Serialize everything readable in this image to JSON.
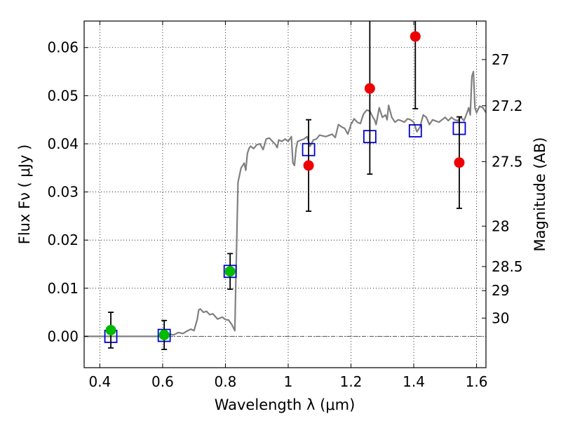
{
  "chart_data": {
    "type": "scatter",
    "title": "",
    "xlabel": "Wavelength  λ (μm)",
    "ylabel": "Flux  Fν  ( μJy )",
    "y2label": "Magnitude (AB)",
    "xlim": [
      0.35,
      1.63
    ],
    "ylim": [
      -0.0065,
      0.0655
    ],
    "x_ticks": [
      0.4,
      0.6,
      0.8,
      1.0,
      1.2,
      1.4,
      1.6
    ],
    "x_tick_labels": [
      "0.4",
      "0.6",
      "0.8",
      "1",
      "1.2",
      "1.4",
      "1.6"
    ],
    "y_ticks": [
      0.0,
      0.01,
      0.02,
      0.03,
      0.04,
      0.05,
      0.06
    ],
    "y_tick_labels": [
      "0.00",
      "0.01",
      "0.02",
      "0.03",
      "0.04",
      "0.05",
      "0.06"
    ],
    "y2_ticks": [
      {
        "label": "27",
        "flux": 0.0575
      },
      {
        "label": "27.2",
        "flux": 0.0479
      },
      {
        "label": "27.5",
        "flux": 0.0363
      },
      {
        "label": "28",
        "flux": 0.0229
      },
      {
        "label": "28.5",
        "flux": 0.0145
      },
      {
        "label": "29",
        "flux": 0.0095
      },
      {
        "label": "30",
        "flux": 0.0038
      }
    ],
    "grid": true,
    "zero_line": true,
    "series": [
      {
        "kind": "line",
        "color": "#808080",
        "points": [
          [
            0.35,
            0.0
          ],
          [
            0.6,
            0.0
          ],
          [
            0.62,
            0.0005
          ],
          [
            0.635,
            0.0003
          ],
          [
            0.65,
            0.0008
          ],
          [
            0.665,
            0.0006
          ],
          [
            0.675,
            0.001
          ],
          [
            0.69,
            0.0015
          ],
          [
            0.7,
            0.0012
          ],
          [
            0.71,
            0.0035
          ],
          [
            0.715,
            0.0055
          ],
          [
            0.72,
            0.0057
          ],
          [
            0.73,
            0.005
          ],
          [
            0.74,
            0.0052
          ],
          [
            0.75,
            0.0045
          ],
          [
            0.76,
            0.0047
          ],
          [
            0.775,
            0.0036
          ],
          [
            0.79,
            0.004
          ],
          [
            0.8,
            0.0035
          ],
          [
            0.81,
            0.0034
          ],
          [
            0.82,
            0.0025
          ],
          [
            0.83,
            0.0012
          ],
          [
            0.832,
            0.008
          ],
          [
            0.84,
            0.032
          ],
          [
            0.85,
            0.035
          ],
          [
            0.86,
            0.036
          ],
          [
            0.865,
            0.0345
          ],
          [
            0.87,
            0.038
          ],
          [
            0.875,
            0.039
          ],
          [
            0.88,
            0.0395
          ],
          [
            0.89,
            0.039
          ],
          [
            0.9,
            0.0398
          ],
          [
            0.91,
            0.04
          ],
          [
            0.92,
            0.0388
          ],
          [
            0.93,
            0.041
          ],
          [
            0.94,
            0.0412
          ],
          [
            0.95,
            0.0405
          ],
          [
            0.96,
            0.0398
          ],
          [
            0.965,
            0.0392
          ],
          [
            0.97,
            0.0408
          ],
          [
            0.98,
            0.0405
          ],
          [
            0.99,
            0.041
          ],
          [
            1.0,
            0.0405
          ],
          [
            1.01,
            0.0415
          ],
          [
            1.015,
            0.036
          ],
          [
            1.02,
            0.0355
          ],
          [
            1.025,
            0.039
          ],
          [
            1.03,
            0.0405
          ],
          [
            1.05,
            0.041
          ],
          [
            1.06,
            0.0415
          ],
          [
            1.07,
            0.0395
          ],
          [
            1.08,
            0.0408
          ],
          [
            1.09,
            0.041
          ],
          [
            1.1,
            0.0418
          ],
          [
            1.12,
            0.0415
          ],
          [
            1.14,
            0.042
          ],
          [
            1.15,
            0.0413
          ],
          [
            1.16,
            0.044
          ],
          [
            1.17,
            0.0435
          ],
          [
            1.18,
            0.0432
          ],
          [
            1.19,
            0.042
          ],
          [
            1.2,
            0.044
          ],
          [
            1.21,
            0.0452
          ],
          [
            1.22,
            0.0445
          ],
          [
            1.23,
            0.0442
          ],
          [
            1.24,
            0.0462
          ],
          [
            1.25,
            0.047
          ],
          [
            1.26,
            0.0468
          ],
          [
            1.27,
            0.0455
          ],
          [
            1.275,
            0.045
          ],
          [
            1.28,
            0.044
          ],
          [
            1.29,
            0.0475
          ],
          [
            1.3,
            0.0455
          ],
          [
            1.31,
            0.046
          ],
          [
            1.315,
            0.045
          ],
          [
            1.32,
            0.048
          ],
          [
            1.33,
            0.0455
          ],
          [
            1.34,
            0.0445
          ],
          [
            1.35,
            0.045
          ],
          [
            1.36,
            0.0448
          ],
          [
            1.37,
            0.0445
          ],
          [
            1.38,
            0.0452
          ],
          [
            1.39,
            0.045
          ],
          [
            1.4,
            0.0445
          ],
          [
            1.41,
            0.0425
          ],
          [
            1.42,
            0.0435
          ],
          [
            1.43,
            0.046
          ],
          [
            1.44,
            0.0455
          ],
          [
            1.45,
            0.044
          ],
          [
            1.46,
            0.045
          ],
          [
            1.48,
            0.0445
          ],
          [
            1.5,
            0.0455
          ],
          [
            1.51,
            0.0448
          ],
          [
            1.52,
            0.0455
          ],
          [
            1.53,
            0.045
          ],
          [
            1.54,
            0.0448
          ],
          [
            1.55,
            0.0455
          ],
          [
            1.56,
            0.0448
          ],
          [
            1.57,
            0.0465
          ],
          [
            1.575,
            0.0475
          ],
          [
            1.58,
            0.046
          ],
          [
            1.585,
            0.054
          ],
          [
            1.59,
            0.055
          ],
          [
            1.595,
            0.0475
          ],
          [
            1.6,
            0.0465
          ],
          [
            1.61,
            0.0478
          ],
          [
            1.62,
            0.0475
          ],
          [
            1.63,
            0.0465
          ]
        ]
      },
      {
        "kind": "open_square",
        "color": "#0000cc",
        "points": [
          [
            0.435,
            0.0
          ],
          [
            0.605,
            0.0002
          ],
          [
            0.815,
            0.0135
          ],
          [
            1.065,
            0.0388
          ],
          [
            1.26,
            0.0415
          ],
          [
            1.405,
            0.0427
          ],
          [
            1.545,
            0.0432
          ]
        ]
      },
      {
        "kind": "filled_circle",
        "color": "#00bb00",
        "points": [
          {
            "x": 0.435,
            "y": 0.0013,
            "err": 0.0037
          },
          {
            "x": 0.605,
            "y": 0.0003,
            "err": 0.003
          },
          {
            "x": 0.815,
            "y": 0.0135,
            "err": 0.0037
          }
        ]
      },
      {
        "kind": "filled_circle",
        "color": "#ee0000",
        "points": [
          {
            "x": 1.065,
            "y": 0.0355,
            "err": 0.0095
          },
          {
            "x": 1.26,
            "y": 0.0515,
            "err": 0.0178
          },
          {
            "x": 1.405,
            "y": 0.0623,
            "err": 0.015
          },
          {
            "x": 1.545,
            "y": 0.0361,
            "err": 0.0095
          }
        ]
      }
    ]
  }
}
